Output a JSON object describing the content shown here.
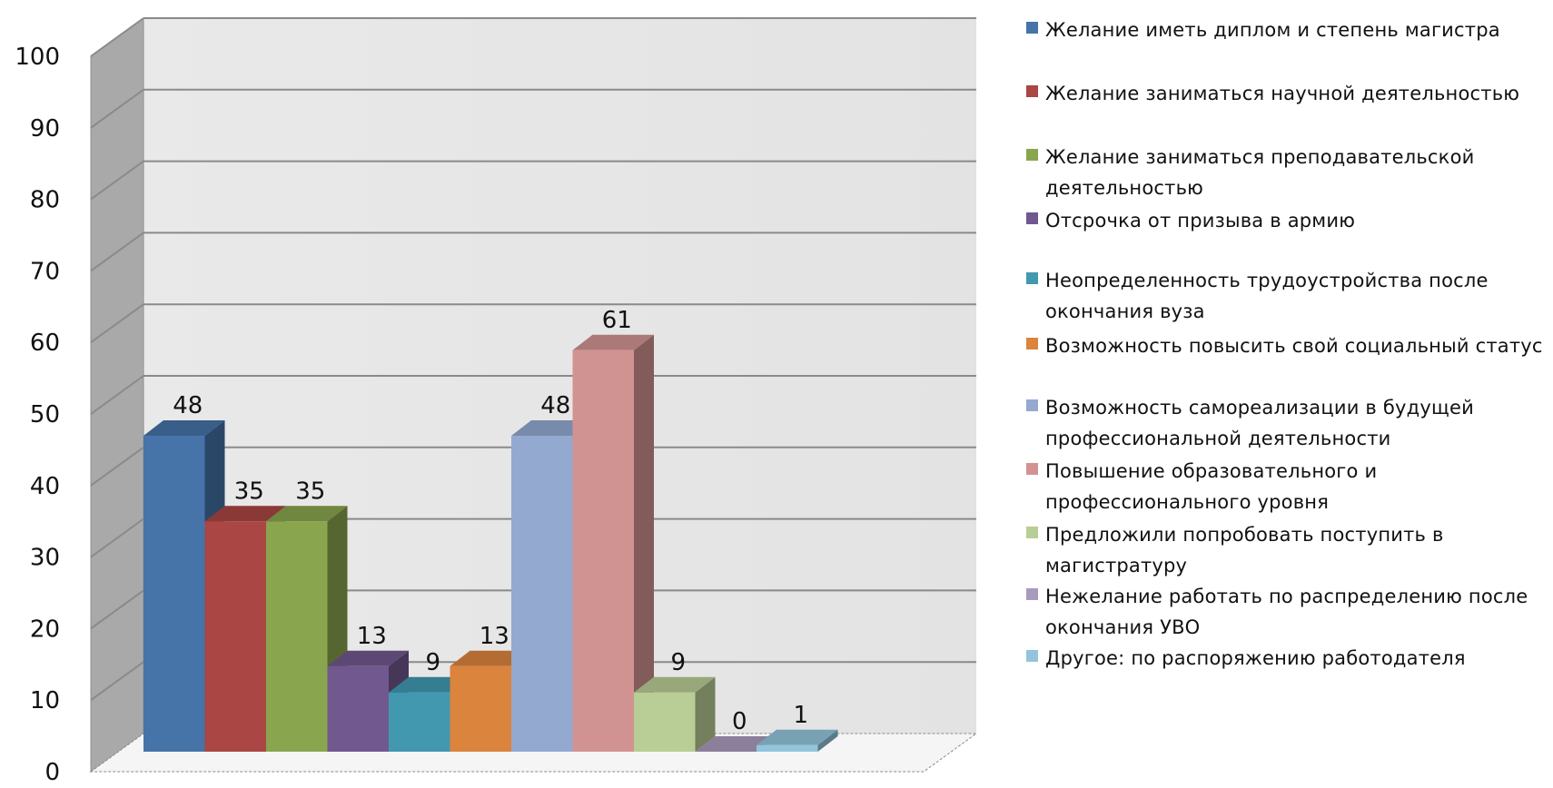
{
  "chart_data": {
    "type": "bar",
    "ylim": [
      0,
      100
    ],
    "yticks": [
      0,
      10,
      20,
      30,
      40,
      50,
      60,
      70,
      80,
      90,
      100
    ],
    "grid": true,
    "legend_position": "right",
    "series": [
      {
        "name": "Желание иметь диплом и степень магистра",
        "value": 48,
        "label": "48",
        "color": "#4673a8"
      },
      {
        "name": "Желание заниматься научной деятельностью",
        "value": 35,
        "label": "35",
        "color": "#aa4643"
      },
      {
        "name": "Желание заниматься преподавательской деятельностью",
        "value": 35,
        "label": "35",
        "color": "#89a54e"
      },
      {
        "name": "Отсрочка от призыва в армию",
        "value": 13,
        "label": "13",
        "color": "#71588f"
      },
      {
        "name": "Неопределенность трудоустройства после окончания вуза",
        "value": 9,
        "label": "9",
        "color": "#4198af"
      },
      {
        "name": "Возможность повысить свой социальный статус",
        "value": 13,
        "label": "13",
        "color": "#db843d"
      },
      {
        "name": "Возможность самореализации в будущей профессиональной деятельности",
        "value": 48,
        "label": "48",
        "color": "#93a9cf"
      },
      {
        "name": "Повышение образовательного и профессионального уровня",
        "value": 61,
        "label": "61",
        "color": "#d19392"
      },
      {
        "name": "Предложили попробовать поступить в магистратуру",
        "value": 9,
        "label": "9",
        "color": "#b9cd96"
      },
      {
        "name": "Нежелание работать по распределению после окончания УВО",
        "value": 0,
        "label": "0",
        "color": "#a99bbd"
      },
      {
        "name": "Другое: по распоряжению работодателя",
        "value": 1,
        "label": "1",
        "color": "#92c5dc"
      }
    ]
  }
}
